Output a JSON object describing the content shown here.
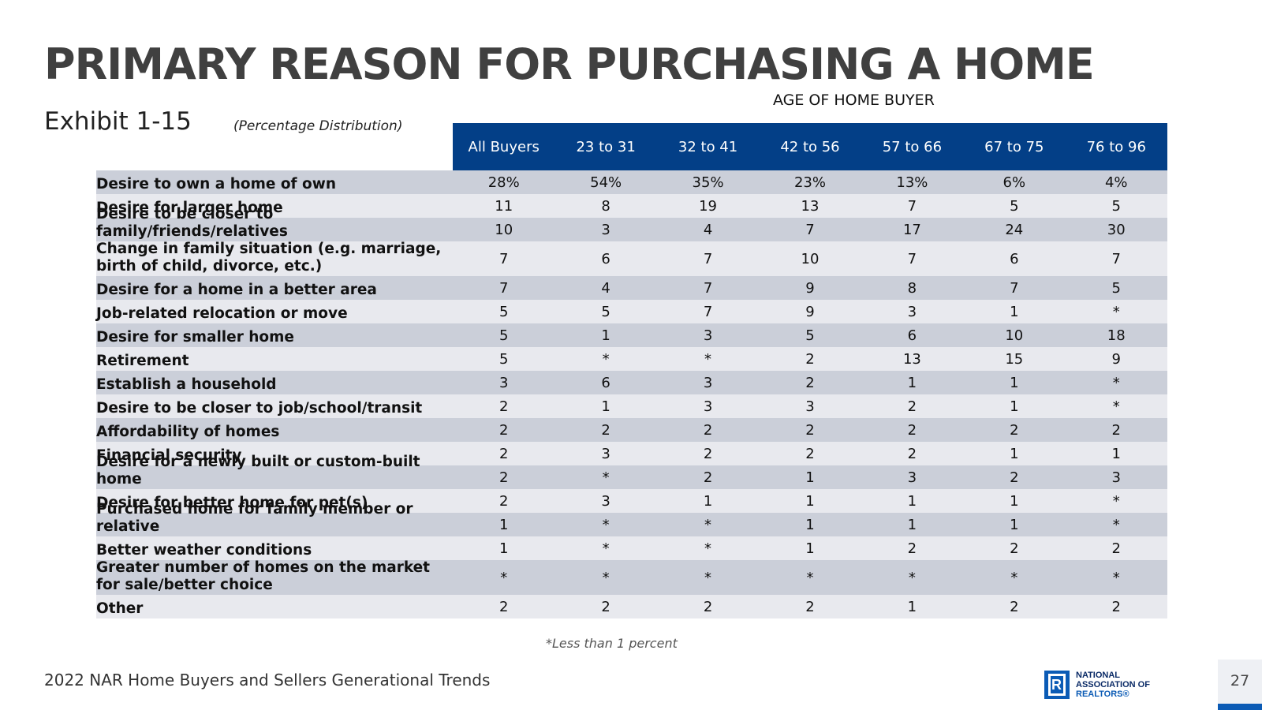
{
  "title": "PRIMARY REASON FOR PURCHASING A HOME",
  "exhibit": "Exhibit 1-15",
  "distribution_note": "(Percentage Distribution)",
  "age_header": "AGE OF HOME BUYER",
  "columns": [
    "All Buyers",
    "23 to 31",
    "32 to 41",
    "42 to 56",
    "57 to 66",
    "67 to 75",
    "76 to 96"
  ],
  "rows": [
    {
      "label": "Desire to own a home of own",
      "values": [
        "28%",
        "54%",
        "35%",
        "23%",
        "13%",
        "6%",
        "4%"
      ]
    },
    {
      "label": "Desire for larger home",
      "values": [
        "11",
        "8",
        "19",
        "13",
        "7",
        "5",
        "5"
      ]
    },
    {
      "label": "Desire to be closer to family/friends/relatives",
      "values": [
        "10",
        "3",
        "4",
        "7",
        "17",
        "24",
        "30"
      ]
    },
    {
      "label": "Change in family situation (e.g. marriage, birth of child, divorce, etc.)",
      "values": [
        "7",
        "6",
        "7",
        "10",
        "7",
        "6",
        "7"
      ]
    },
    {
      "label": "Desire for a home in a better area",
      "values": [
        "7",
        "4",
        "7",
        "9",
        "8",
        "7",
        "5"
      ]
    },
    {
      "label": "Job-related relocation or move",
      "values": [
        "5",
        "5",
        "7",
        "9",
        "3",
        "1",
        "*"
      ]
    },
    {
      "label": "Desire for smaller home",
      "values": [
        "5",
        "1",
        "3",
        "5",
        "6",
        "10",
        "18"
      ]
    },
    {
      "label": "Retirement",
      "values": [
        "5",
        "*",
        "*",
        "2",
        "13",
        "15",
        "9"
      ]
    },
    {
      "label": "Establish a household",
      "values": [
        "3",
        "6",
        "3",
        "2",
        "1",
        "1",
        "*"
      ]
    },
    {
      "label": "Desire to be closer to job/school/transit",
      "values": [
        "2",
        "1",
        "3",
        "3",
        "2",
        "1",
        "*"
      ]
    },
    {
      "label": "Affordability of homes",
      "values": [
        "2",
        "2",
        "2",
        "2",
        "2",
        "2",
        "2"
      ]
    },
    {
      "label": "Financial security",
      "values": [
        "2",
        "3",
        "2",
        "2",
        "2",
        "1",
        "1"
      ]
    },
    {
      "label": "Desire for a newly built or custom-built home",
      "values": [
        "2",
        "*",
        "2",
        "1",
        "3",
        "2",
        "3"
      ]
    },
    {
      "label": "Desire for better home for pet(s)",
      "values": [
        "2",
        "3",
        "1",
        "1",
        "1",
        "1",
        "*"
      ]
    },
    {
      "label": "Purchased home for family member or relative",
      "values": [
        "1",
        "*",
        "*",
        "1",
        "1",
        "1",
        "*"
      ]
    },
    {
      "label": "Better weather conditions",
      "values": [
        "1",
        "*",
        "*",
        "1",
        "2",
        "2",
        "2"
      ]
    },
    {
      "label": "Greater number of homes on the market for sale/better choice",
      "values": [
        "*",
        "*",
        "*",
        "*",
        "*",
        "*",
        "*"
      ]
    },
    {
      "label": "Other",
      "values": [
        "2",
        "2",
        "2",
        "2",
        "1",
        "2",
        "2"
      ]
    }
  ],
  "footnote": "*Less than 1 percent",
  "source": "2022 NAR Home Buyers and Sellers Generational Trends",
  "logo": {
    "line1": "NATIONAL",
    "line2": "ASSOCIATION OF",
    "line3": "REALTORS®",
    "mark": "R"
  },
  "page_number": "27",
  "colors": {
    "header_bg": "#033f87",
    "row_dark": "#cbcfd9",
    "row_light": "#e8e9ee",
    "accent": "#0b5bb5"
  }
}
